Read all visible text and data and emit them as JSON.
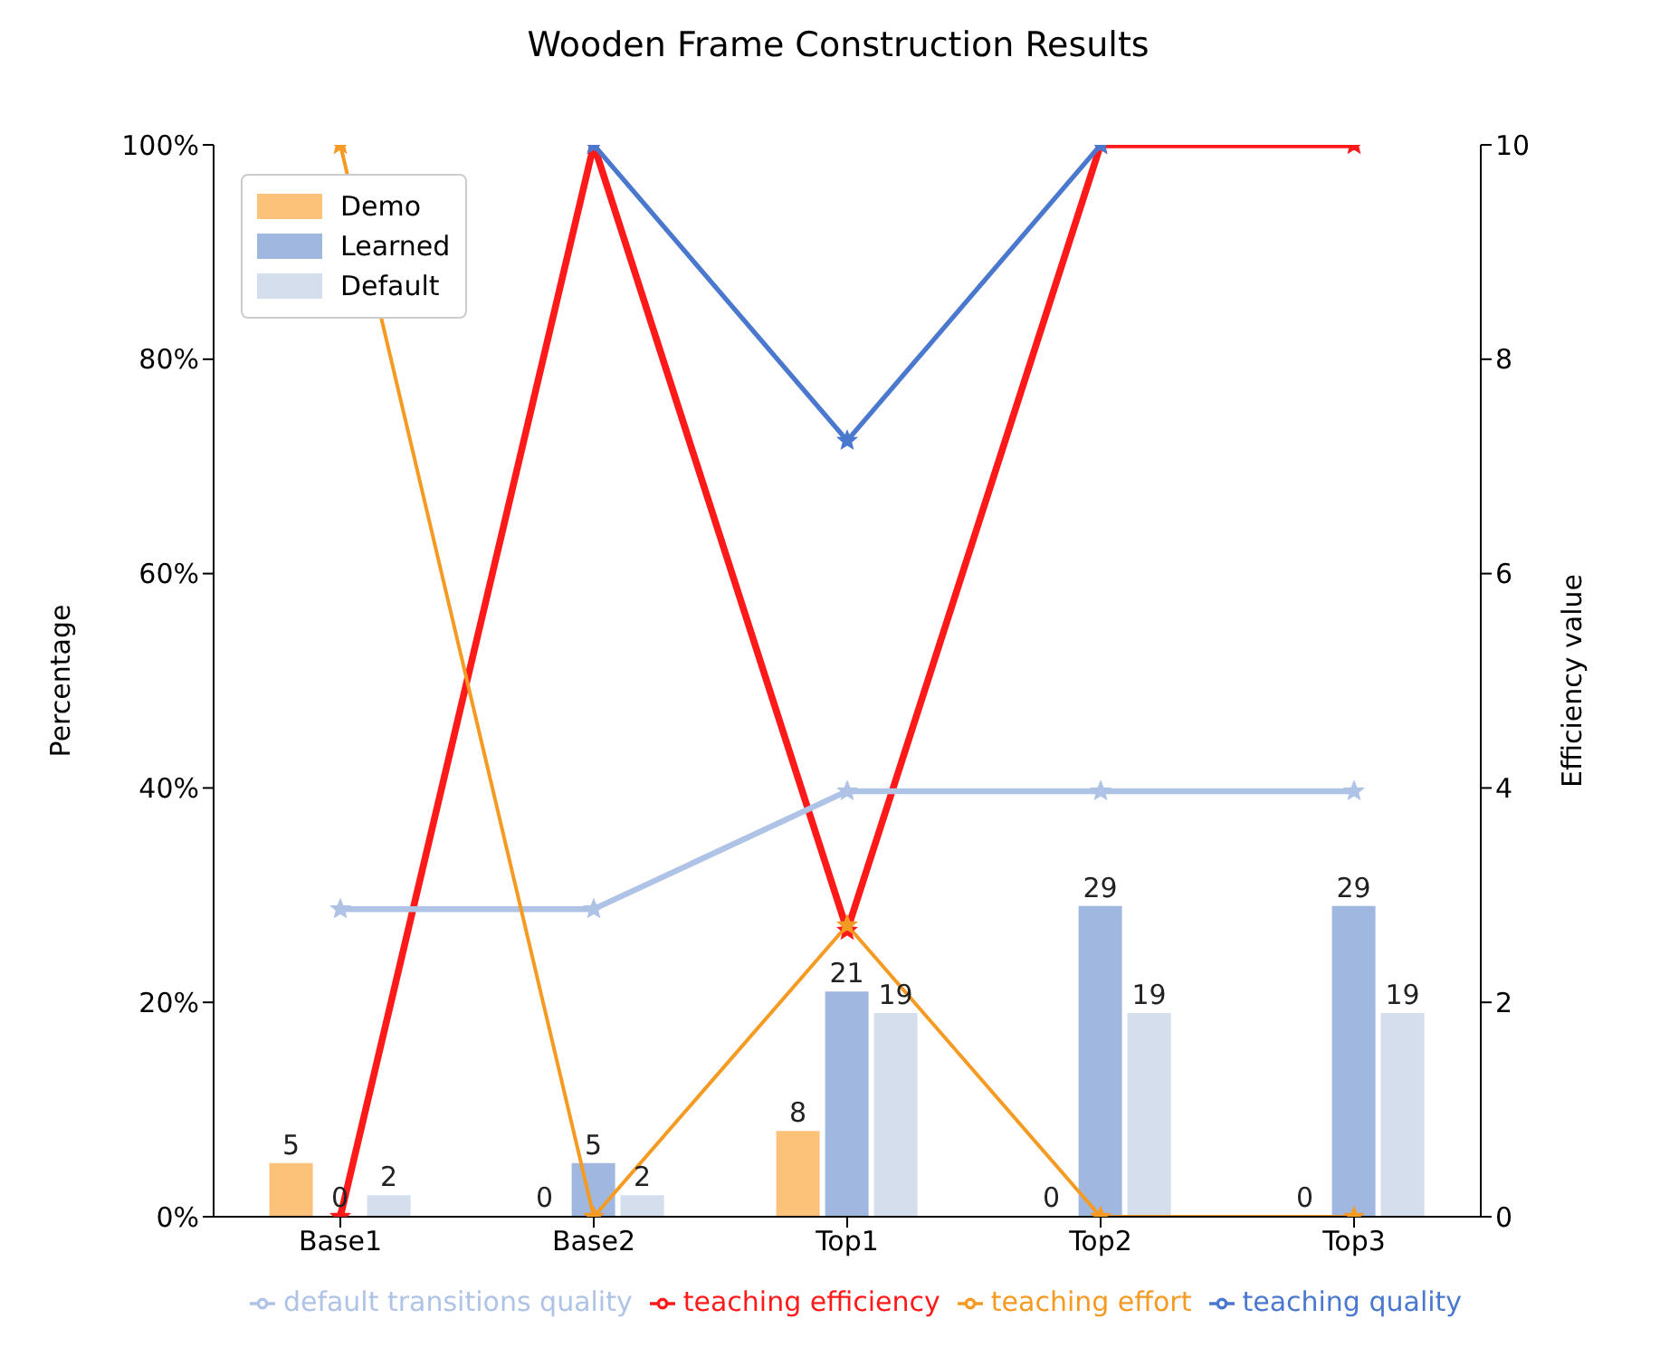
{
  "chart_data": {
    "type": "bar",
    "title": "Wooden Frame Construction Results",
    "ylabel": "Percentage",
    "y2label": "Efficiency value",
    "categories": [
      "Base1",
      "Base2",
      "Top1",
      "Top2",
      "Top3"
    ],
    "series": [
      {
        "name": "Demo",
        "color": "#fcc27a",
        "values": [
          5,
          0,
          8,
          0,
          0
        ],
        "value_labels": [
          "5",
          "0",
          "8",
          "0",
          "0"
        ]
      },
      {
        "name": "Learned",
        "color": "#a0b8e0",
        "values": [
          0,
          5,
          21,
          29,
          29
        ],
        "value_labels": [
          "0",
          "5",
          "21",
          "29",
          "29"
        ]
      },
      {
        "name": "Default",
        "color": "#d4deec",
        "values": [
          2,
          2,
          19,
          19,
          19
        ],
        "value_labels": [
          "2",
          "2",
          "19",
          "19",
          "19"
        ]
      },
      {
        "name": "teaching effort",
        "type": "line",
        "axis": "y2",
        "color": "#f59a23",
        "values": [
          10,
          0,
          2.72,
          0,
          0
        ]
      },
      {
        "name": "teaching quality",
        "type": "line",
        "axis": "y2",
        "color": "#4a78cf",
        "values": [
          null,
          10,
          7.24,
          10,
          null
        ]
      },
      {
        "name": "default transitions quality",
        "type": "line",
        "axis": "y2",
        "color": "#aec3e6",
        "values": [
          2.87,
          2.87,
          3.97,
          3.97,
          3.97
        ]
      },
      {
        "name": "teaching efficiency",
        "type": "line",
        "axis": "y2",
        "color": "#ff1a1a",
        "values": [
          0,
          10,
          2.67,
          10,
          10
        ]
      }
    ],
    "ylim": [
      0,
      100
    ],
    "yticks": [
      {
        "value": 0,
        "label": "0%"
      },
      {
        "value": 20,
        "label": "20%"
      },
      {
        "value": 40,
        "label": "40%"
      },
      {
        "value": 60,
        "label": "60%"
      },
      {
        "value": 80,
        "label": "80%"
      },
      {
        "value": 100,
        "label": "100%"
      }
    ],
    "y2lim": [
      0,
      10
    ],
    "y2ticks": [
      0,
      2,
      4,
      6,
      8,
      10
    ],
    "marker": "star",
    "legend": "bottom"
  }
}
